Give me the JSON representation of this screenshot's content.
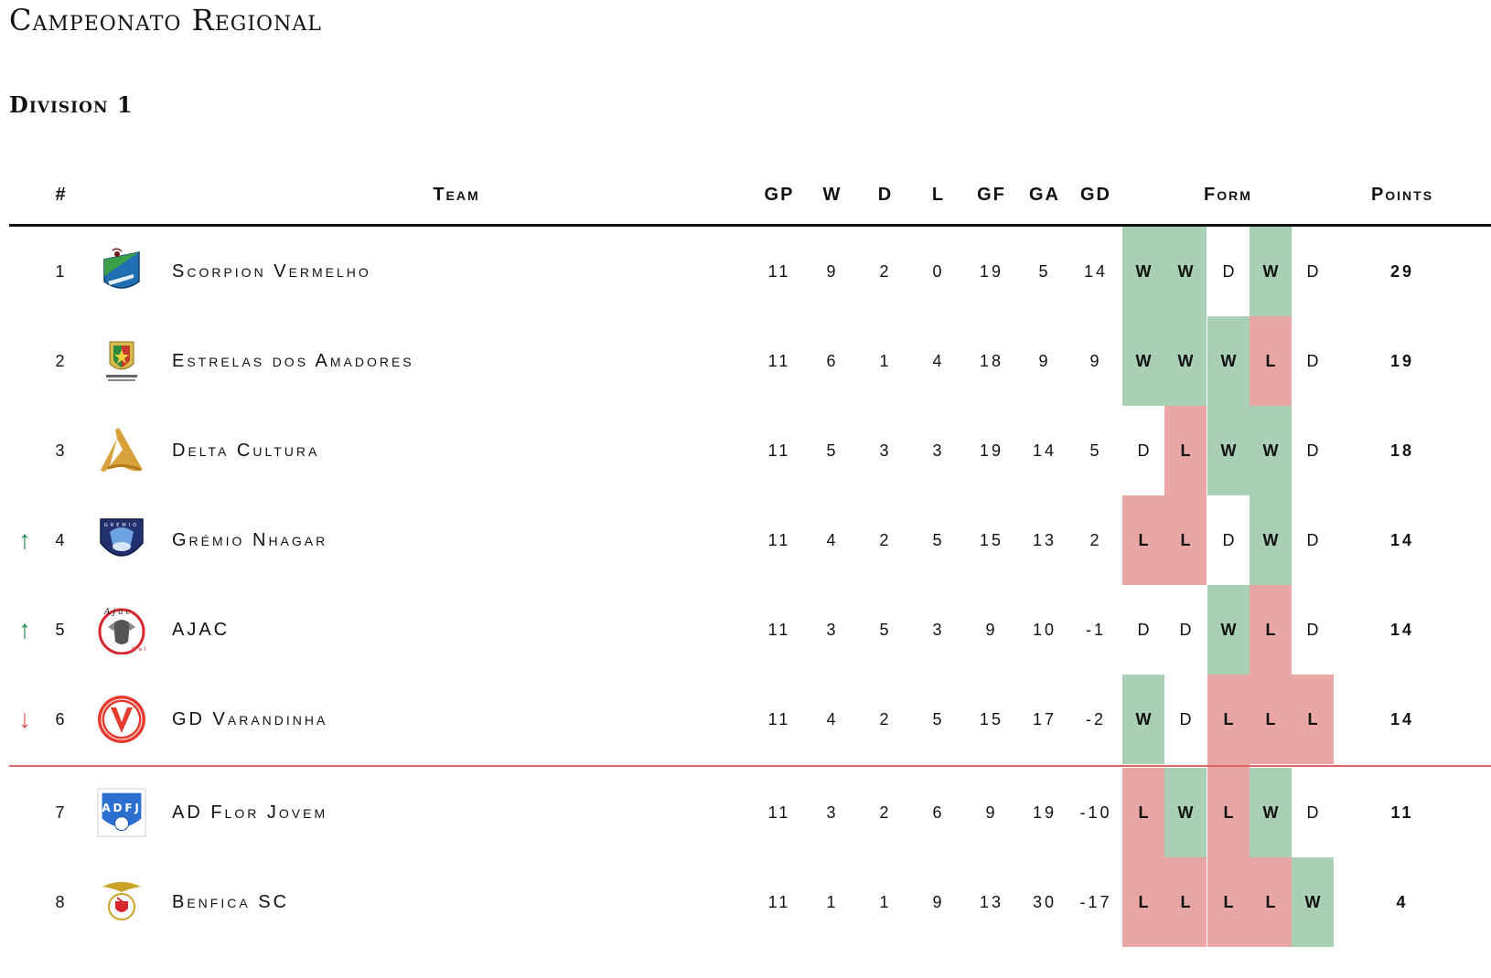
{
  "title": "Campeonato Regional",
  "subtitle": "Division 1",
  "headers": {
    "rank": "#",
    "team": "Team",
    "gp": "GP",
    "w": "W",
    "d": "D",
    "l": "L",
    "gf": "GF",
    "ga": "GA",
    "gd": "GD",
    "form": "Form",
    "points": "Points"
  },
  "colors": {
    "win": "#a9cfb4",
    "loss": "#e8a7a5",
    "promotion_arrow": "#1a8a4a",
    "relegation_arrow": "#d9534f",
    "divider": "#e06666"
  },
  "rows": [
    {
      "arrow": "",
      "arrow_icon": "",
      "rank": "1",
      "logo": "scorpion-vermelho-crest",
      "team": "Scorpion Vermelho",
      "gp": "11",
      "w": "9",
      "d": "2",
      "l": "0",
      "gf": "19",
      "ga": "5",
      "gd": "14",
      "form": [
        "W",
        "W",
        "D",
        "W",
        "D"
      ],
      "points": "29"
    },
    {
      "arrow": "",
      "arrow_icon": "",
      "rank": "2",
      "logo": "estrelas-dos-amadores-crest",
      "team": "Estrelas dos Amadores",
      "gp": "11",
      "w": "6",
      "d": "1",
      "l": "4",
      "gf": "18",
      "ga": "9",
      "gd": "9",
      "form": [
        "W",
        "W",
        "W",
        "L",
        "D"
      ],
      "points": "19"
    },
    {
      "arrow": "",
      "arrow_icon": "",
      "rank": "3",
      "logo": "delta-cultura-crest",
      "team": "Delta Cultura",
      "gp": "11",
      "w": "5",
      "d": "3",
      "l": "3",
      "gf": "19",
      "ga": "14",
      "gd": "5",
      "form": [
        "D",
        "L",
        "W",
        "W",
        "D"
      ],
      "points": "18"
    },
    {
      "arrow": "↑",
      "arrow_icon": "up-arrow-icon",
      "rank": "4",
      "logo": "gremio-nhagar-crest",
      "team": "Grémio Nhagar",
      "gp": "11",
      "w": "4",
      "d": "2",
      "l": "5",
      "gf": "15",
      "ga": "13",
      "gd": "2",
      "form": [
        "L",
        "L",
        "D",
        "W",
        "D"
      ],
      "points": "14"
    },
    {
      "arrow": "↑",
      "arrow_icon": "up-arrow-icon",
      "rank": "5",
      "logo": "ajac-crest",
      "team": "AJAC",
      "gp": "11",
      "w": "3",
      "d": "5",
      "l": "3",
      "gf": "9",
      "ga": "10",
      "gd": "-1",
      "form": [
        "D",
        "D",
        "W",
        "L",
        "D"
      ],
      "points": "14"
    },
    {
      "arrow": "↓",
      "arrow_icon": "down-arrow-icon",
      "rank": "6",
      "logo": "gd-varandinha-crest",
      "team": "GD Varandinha",
      "gp": "11",
      "w": "4",
      "d": "2",
      "l": "5",
      "gf": "15",
      "ga": "17",
      "gd": "-2",
      "form": [
        "W",
        "D",
        "L",
        "L",
        "L"
      ],
      "points": "14"
    },
    {
      "arrow": "",
      "arrow_icon": "",
      "rank": "7",
      "logo": "ad-flor-jovem-crest",
      "team": "AD Flor Jovem",
      "gp": "11",
      "w": "3",
      "d": "2",
      "l": "6",
      "gf": "9",
      "ga": "19",
      "gd": "-10",
      "form": [
        "L",
        "W",
        "L",
        "W",
        "D"
      ],
      "points": "11"
    },
    {
      "arrow": "",
      "arrow_icon": "",
      "rank": "8",
      "logo": "benfica-sc-crest",
      "team": "Benfica SC",
      "gp": "11",
      "w": "1",
      "d": "1",
      "l": "9",
      "gf": "13",
      "ga": "30",
      "gd": "-17",
      "form": [
        "L",
        "L",
        "L",
        "L",
        "W"
      ],
      "points": "4"
    }
  ],
  "divider_after_rank": "6"
}
